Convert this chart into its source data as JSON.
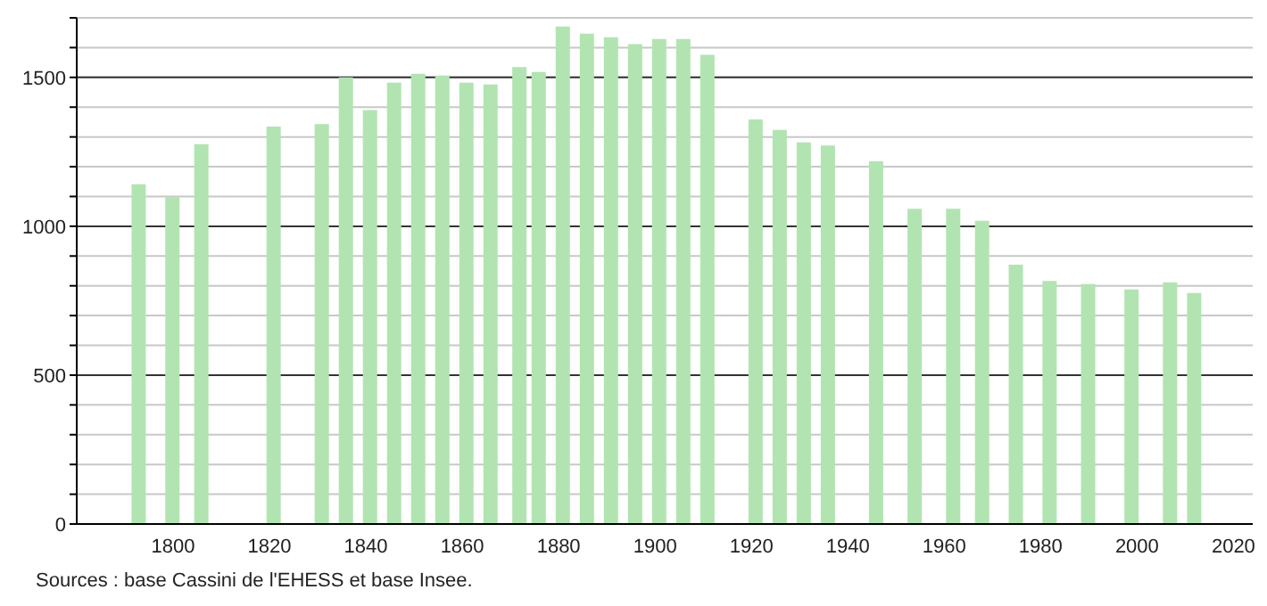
{
  "chart_data": {
    "type": "bar",
    "x": [
      1793,
      1800,
      1806,
      1821,
      1831,
      1836,
      1841,
      1846,
      1851,
      1856,
      1861,
      1866,
      1872,
      1876,
      1881,
      1886,
      1891,
      1896,
      1901,
      1906,
      1911,
      1921,
      1926,
      1931,
      1936,
      1946,
      1954,
      1962,
      1968,
      1975,
      1982,
      1990,
      1999,
      2007,
      2012
    ],
    "values": [
      1141,
      1098,
      1276,
      1335,
      1343,
      1500,
      1390,
      1482,
      1512,
      1506,
      1482,
      1476,
      1535,
      1518,
      1671,
      1647,
      1635,
      1612,
      1629,
      1629,
      1576,
      1359,
      1324,
      1282,
      1271,
      1218,
      1059,
      1059,
      1018,
      871,
      816,
      806,
      788,
      812,
      776
    ],
    "color": "#b2e4b2",
    "xlim": [
      1780,
      2024
    ],
    "xticks": [
      1800,
      1820,
      1840,
      1860,
      1880,
      1900,
      1920,
      1940,
      1960,
      1980,
      2000,
      2020
    ],
    "ylim": [
      0,
      1700
    ],
    "yticks": [
      0,
      {
        "value": 100,
        "label": null
      },
      {
        "value": 200,
        "label": null
      },
      {
        "value": 300,
        "label": null
      },
      {
        "value": 400,
        "label": null
      },
      500,
      {
        "value": 600,
        "label": null
      },
      {
        "value": 700,
        "label": null
      },
      {
        "value": 800,
        "label": null
      },
      {
        "value": 900,
        "label": null
      },
      1000,
      {
        "value": 1100,
        "label": null
      },
      {
        "value": 1200,
        "label": null
      },
      {
        "value": 1300,
        "label": null
      },
      {
        "value": 1400,
        "label": null
      },
      1500,
      {
        "value": 1600,
        "label": null
      },
      {
        "value": 1700,
        "label": null
      }
    ],
    "grid": "y",
    "annotations": [
      "Sources : base Cassini de l'EHESS et base Insee."
    ]
  }
}
